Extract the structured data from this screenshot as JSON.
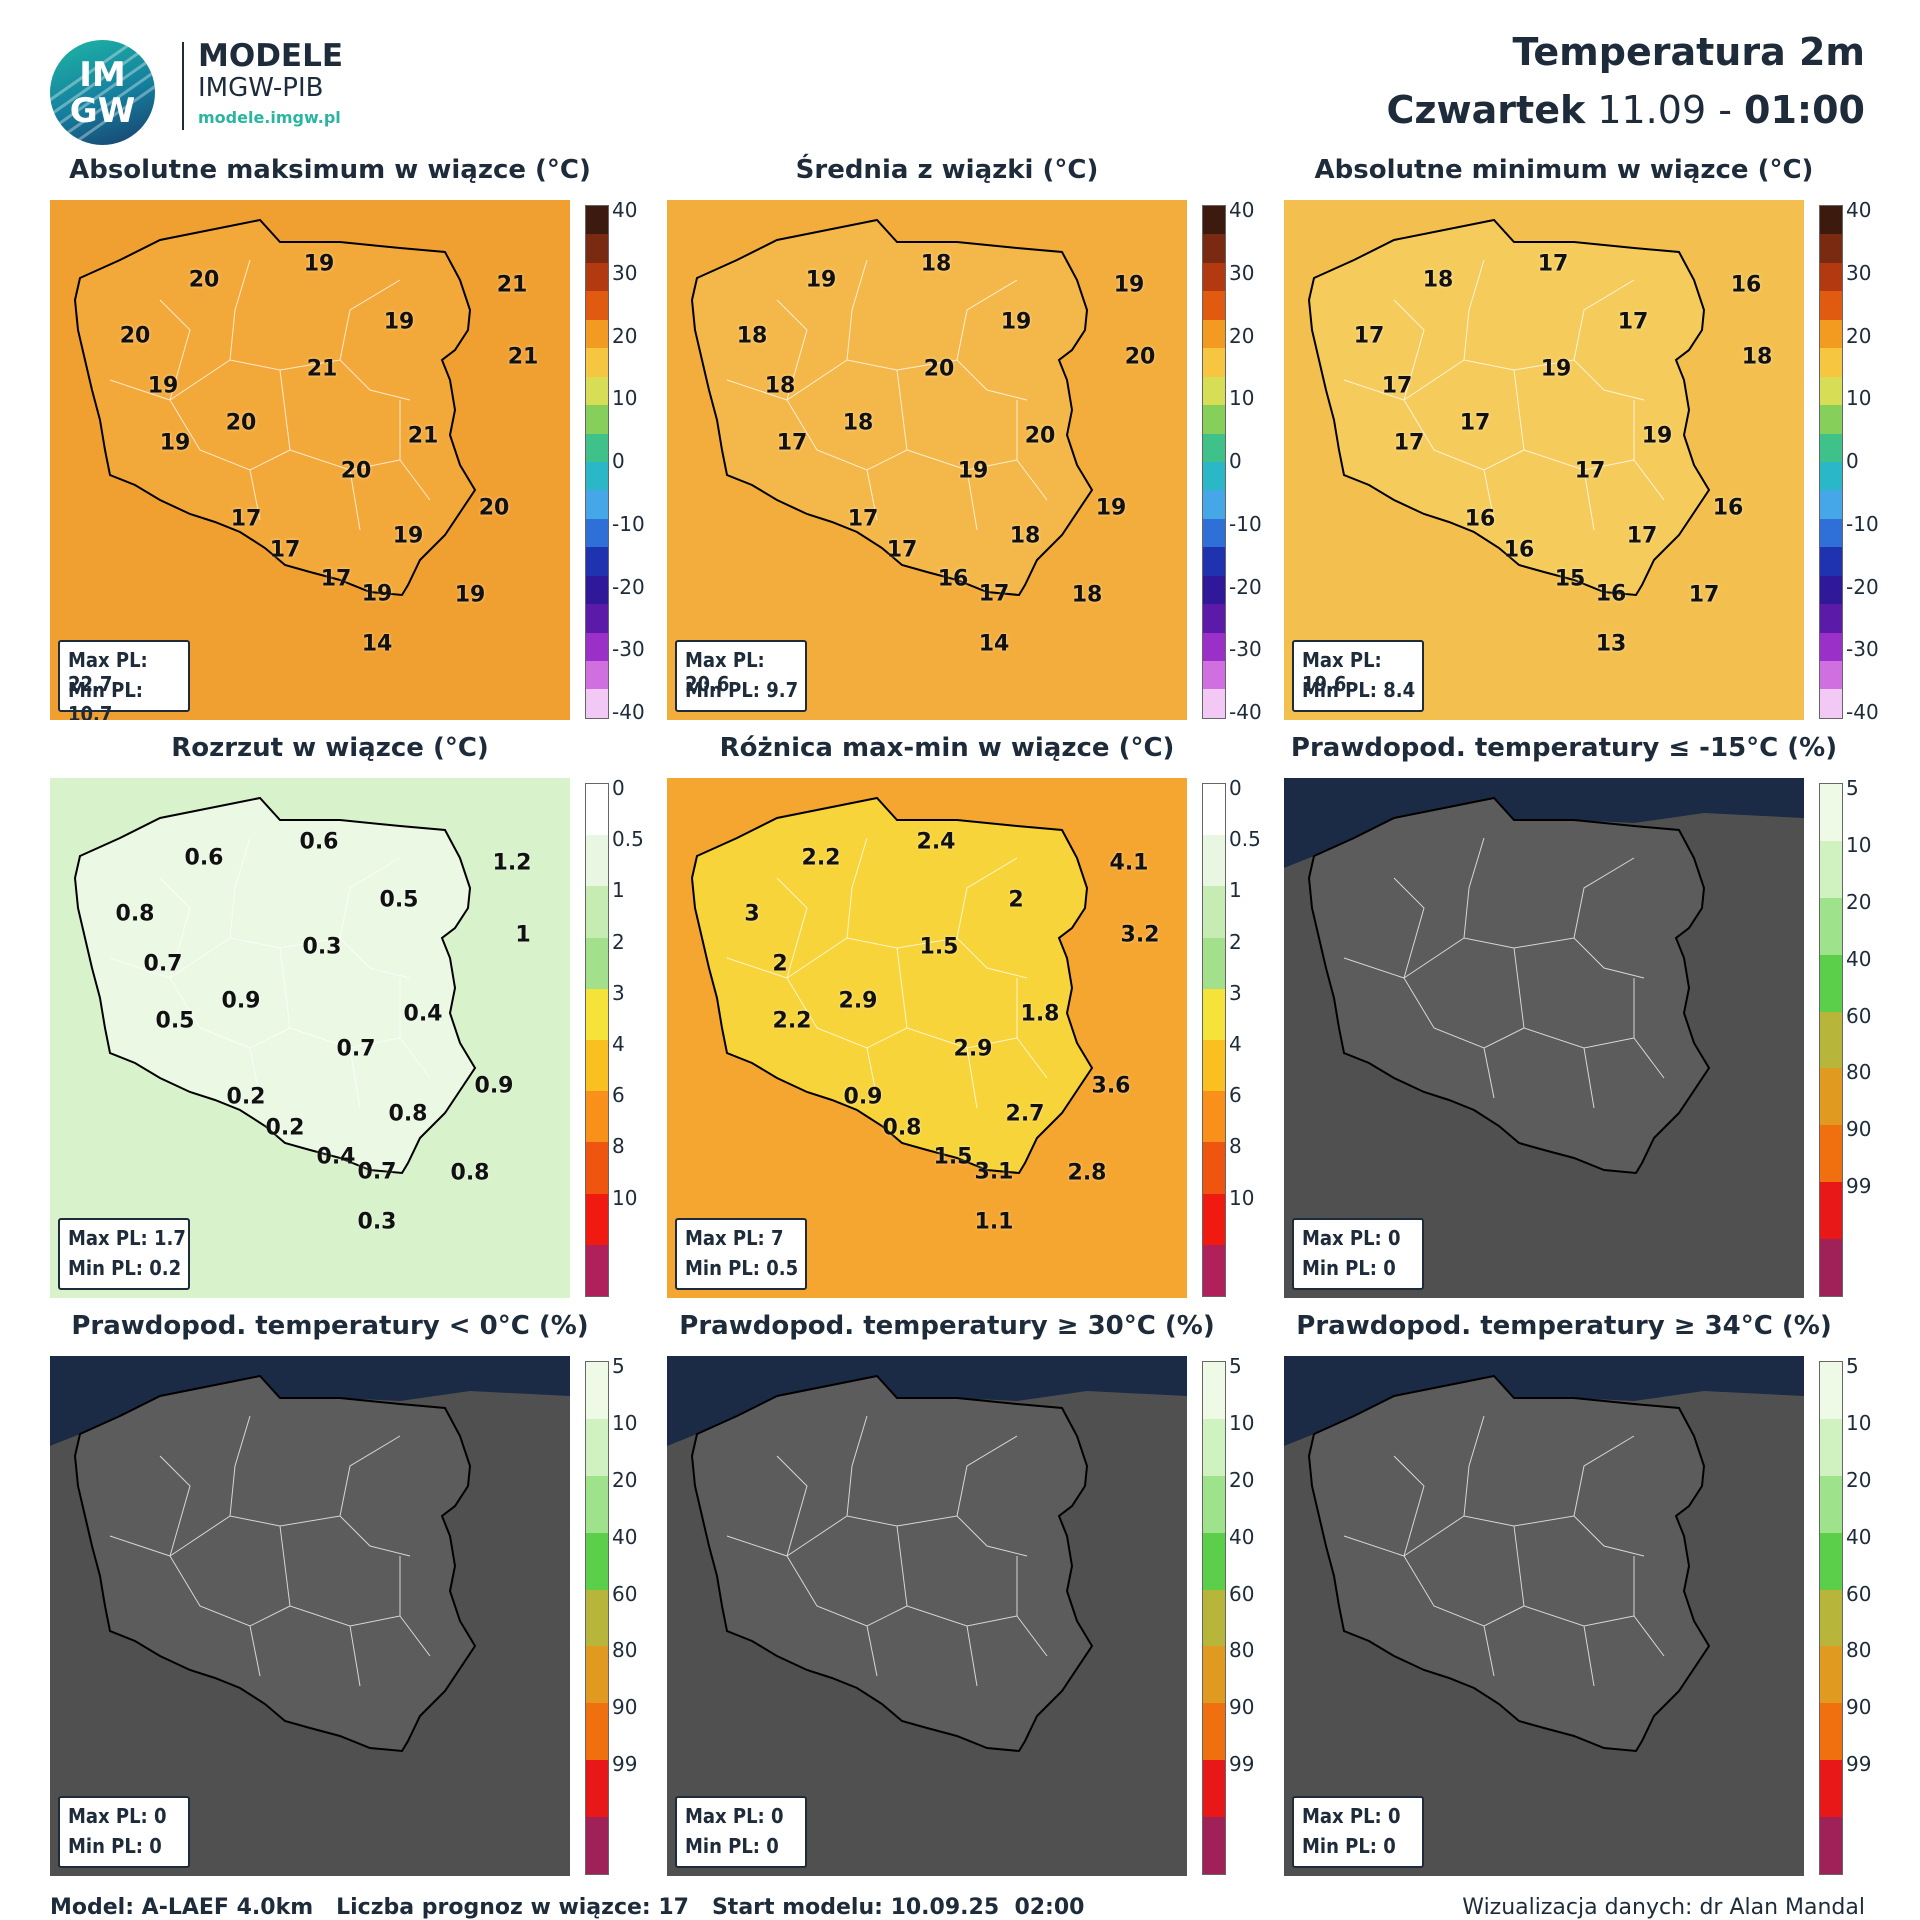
{
  "header": {
    "logo_top": "IM",
    "logo_bottom": "GW",
    "brand_main": "MODELE",
    "brand_sub": "IMGW-PIB",
    "brand_url": "modele.imgw.pl",
    "title": "Temperatura 2m",
    "day": "Czwartek",
    "date": "11.09",
    "separator": "-",
    "hour": "01:00"
  },
  "scales": {
    "temperature": {
      "ticks": [
        "40",
        "30",
        "20",
        "10",
        "0",
        "-10",
        "-20",
        "-30",
        "-40"
      ],
      "colors": [
        "#3d1a0e",
        "#7a2a10",
        "#b33a10",
        "#e05a10",
        "#f39a20",
        "#f6c640",
        "#d7dd55",
        "#86cf5a",
        "#3ec28a",
        "#2ab7c8",
        "#46a7e8",
        "#2f6fd8",
        "#1f33b0",
        "#30189a",
        "#5c1aa8",
        "#9a30c8",
        "#d070e0",
        "#f2c8f4"
      ]
    },
    "spread": {
      "ticks": [
        "0",
        "0.5",
        "1",
        "2",
        "3",
        "4",
        "6",
        "8",
        "10"
      ],
      "colors": [
        "#ffffff",
        "#e9f7e2",
        "#c6ecb4",
        "#a2e08c",
        "#f5e33a",
        "#f9c020",
        "#f8901a",
        "#f05510",
        "#f01a10",
        "#b0205a"
      ]
    },
    "probability": {
      "ticks": [
        "5",
        "10",
        "20",
        "40",
        "60",
        "80",
        "90",
        "99"
      ],
      "colors": [
        "#eef9e6",
        "#d0f1c0",
        "#9ee38c",
        "#5ccf4a",
        "#b8b63a",
        "#e09a20",
        "#f07010",
        "#e81818",
        "#a02058"
      ]
    }
  },
  "panels": [
    {
      "title": "Absolutne maksimum w wiązce (°C)",
      "type": "temp",
      "fill": "#f3a93a",
      "fill2": "#f0a030",
      "max": "Max PL: 22.7",
      "min": "Min PL: 10.7",
      "labels": [
        [
          "20",
          130,
          68
        ],
        [
          "19",
          228,
          54
        ],
        [
          "21",
          391,
          72
        ],
        [
          "19",
          295,
          103
        ],
        [
          "20",
          72,
          115
        ],
        [
          "21",
          400,
          133
        ],
        [
          "21",
          230,
          143
        ],
        [
          "19",
          96,
          157
        ],
        [
          "20",
          162,
          189
        ],
        [
          "21",
          316,
          200
        ],
        [
          "19",
          106,
          206
        ],
        [
          "20",
          259,
          229
        ],
        [
          "20",
          376,
          261
        ],
        [
          "17",
          166,
          270
        ],
        [
          "19",
          303,
          284
        ],
        [
          "17",
          199,
          296
        ],
        [
          "17",
          242,
          321
        ],
        [
          "19",
          277,
          333
        ],
        [
          "19",
          355,
          334
        ],
        [
          "14",
          277,
          376
        ]
      ]
    },
    {
      "title": "Średnia z wiązki (°C)",
      "type": "temp",
      "fill": "#f4b84a",
      "fill2": "#f2ad3c",
      "max": "Max PL: 20.6",
      "min": "Min PL: 9.7",
      "labels": [
        [
          "19",
          130,
          68
        ],
        [
          "18",
          228,
          54
        ],
        [
          "19",
          391,
          72
        ],
        [
          "19",
          295,
          103
        ],
        [
          "18",
          72,
          115
        ],
        [
          "20",
          400,
          133
        ],
        [
          "20",
          230,
          143
        ],
        [
          "18",
          96,
          157
        ],
        [
          "18",
          162,
          189
        ],
        [
          "20",
          316,
          200
        ],
        [
          "17",
          106,
          206
        ],
        [
          "19",
          259,
          229
        ],
        [
          "19",
          376,
          261
        ],
        [
          "17",
          166,
          270
        ],
        [
          "18",
          303,
          284
        ],
        [
          "17",
          199,
          296
        ],
        [
          "16",
          242,
          321
        ],
        [
          "17",
          277,
          333
        ],
        [
          "18",
          355,
          334
        ],
        [
          "14",
          277,
          376
        ]
      ]
    },
    {
      "title": "Absolutne minimum w wiązce (°C)",
      "type": "temp",
      "fill": "#f5cc5c",
      "fill2": "#f3c050",
      "max": "Max PL: 19.6",
      "min": "Min PL: 8.4",
      "labels": [
        [
          "18",
          130,
          68
        ],
        [
          "17",
          228,
          54
        ],
        [
          "16",
          391,
          72
        ],
        [
          "17",
          295,
          103
        ],
        [
          "17",
          72,
          115
        ],
        [
          "18",
          400,
          133
        ],
        [
          "19",
          230,
          143
        ],
        [
          "17",
          96,
          157
        ],
        [
          "17",
          162,
          189
        ],
        [
          "19",
          316,
          200
        ],
        [
          "17",
          106,
          206
        ],
        [
          "17",
          259,
          229
        ],
        [
          "16",
          376,
          261
        ],
        [
          "16",
          166,
          270
        ],
        [
          "17",
          303,
          284
        ],
        [
          "16",
          199,
          296
        ],
        [
          "15",
          242,
          321
        ],
        [
          "16",
          277,
          333
        ],
        [
          "17",
          355,
          334
        ],
        [
          "13",
          277,
          376
        ]
      ]
    },
    {
      "title": "Rozrzut w wiązce (°C)",
      "type": "spread",
      "fill": "#eaf8e4",
      "fill2": "#d8f2cc",
      "max": "Max PL: 1.7",
      "min": "Min PL: 0.2",
      "labels": [
        [
          "0.6",
          130,
          68
        ],
        [
          "0.6",
          228,
          54
        ],
        [
          "1.2",
          391,
          72
        ],
        [
          "0.5",
          295,
          103
        ],
        [
          "0.8",
          72,
          115
        ],
        [
          "1",
          400,
          133
        ],
        [
          "0.3",
          230,
          143
        ],
        [
          "0.7",
          96,
          157
        ],
        [
          "0.9",
          162,
          189
        ],
        [
          "0.4",
          316,
          200
        ],
        [
          "0.5",
          106,
          206
        ],
        [
          "0.7",
          259,
          229
        ],
        [
          "0.9",
          376,
          261
        ],
        [
          "0.2",
          166,
          270
        ],
        [
          "0.8",
          303,
          284
        ],
        [
          "0.2",
          199,
          296
        ],
        [
          "0.4",
          242,
          321
        ],
        [
          "0.7",
          277,
          333
        ],
        [
          "0.8",
          355,
          334
        ],
        [
          "0.3",
          277,
          376
        ]
      ]
    },
    {
      "title": "Różnica max-min w wiązce (°C)",
      "type": "spread",
      "fill": "#f7d43a",
      "fill2": "#f5a630",
      "max": "Max PL: 7",
      "min": "Min PL: 0.5",
      "labels": [
        [
          "2.2",
          130,
          68
        ],
        [
          "2.4",
          228,
          54
        ],
        [
          "4.1",
          391,
          72
        ],
        [
          "2",
          295,
          103
        ],
        [
          "3",
          72,
          115
        ],
        [
          "3.2",
          400,
          133
        ],
        [
          "1.5",
          230,
          143
        ],
        [
          "2",
          96,
          157
        ],
        [
          "2.9",
          162,
          189
        ],
        [
          "1.8",
          316,
          200
        ],
        [
          "2.2",
          106,
          206
        ],
        [
          "2.9",
          259,
          229
        ],
        [
          "3.6",
          376,
          261
        ],
        [
          "0.9",
          166,
          270
        ],
        [
          "2.7",
          303,
          284
        ],
        [
          "0.8",
          199,
          296
        ],
        [
          "1.5",
          242,
          321
        ],
        [
          "3.1",
          277,
          333
        ],
        [
          "2.8",
          355,
          334
        ],
        [
          "1.1",
          277,
          376
        ]
      ]
    },
    {
      "title": "Prawdopod. temperatury ≤ -15°C (%)",
      "type": "prob",
      "fill": "#5c5c5c",
      "fill2": "#666666",
      "max": "Max PL: 0",
      "min": "Min PL: 0",
      "labels": []
    },
    {
      "title": "Prawdopod. temperatury < 0°C (%)",
      "type": "prob",
      "fill": "#5c5c5c",
      "fill2": "#666666",
      "max": "Max PL: 0",
      "min": "Min PL: 0",
      "labels": []
    },
    {
      "title": "Prawdopod. temperatury ≥ 30°C (%)",
      "type": "prob",
      "fill": "#5c5c5c",
      "fill2": "#666666",
      "max": "Max PL: 0",
      "min": "Min PL: 0",
      "labels": []
    },
    {
      "title": "Prawdopod. temperatury ≥ 34°C (%)",
      "type": "prob",
      "fill": "#5c5c5c",
      "fill2": "#666666",
      "max": "Max PL: 0",
      "min": "Min PL: 0",
      "labels": []
    }
  ],
  "footer": {
    "left": "Model: A-LAEF 4.0km   Liczba prognoz w wiązce: 17   Start modelu: 10.09.25  02:00",
    "right": "Wizualizacja danych: dr Alan Mandal"
  }
}
